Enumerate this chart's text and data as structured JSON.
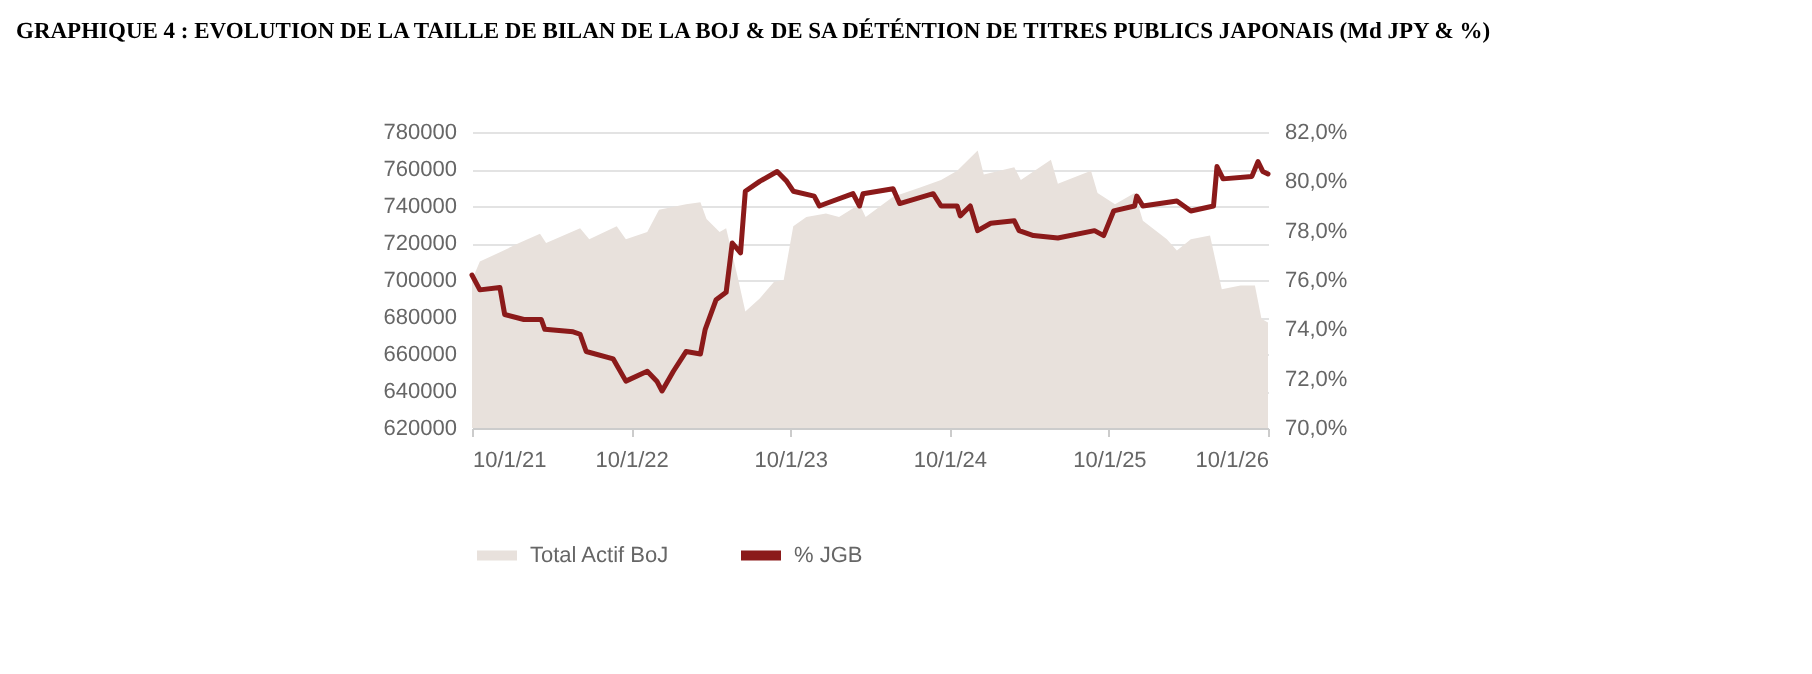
{
  "chart_data": {
    "type": "line",
    "title": "GRAPHIQUE 4 : EVOLUTION DE LA TAILLE DE BILAN DE LA BOJ & DE SA DÉTÉNTION DE TITRES PUBLICS JAPONAIS (Md JPY & %)",
    "xlim": [
      "2021-01-10",
      "2026-01-10"
    ],
    "xticks": [
      {
        "value": "2021-01-10",
        "label": "10/1/21"
      },
      {
        "value": "2022-01-10",
        "label": "10/1/22"
      },
      {
        "value": "2023-01-10",
        "label": "10/1/23"
      },
      {
        "value": "2024-01-10",
        "label": "10/1/24"
      },
      {
        "value": "2025-01-10",
        "label": "10/1/25"
      },
      {
        "value": "2026-01-10",
        "label": "10/1/26"
      }
    ],
    "ylim": [
      620000,
      780000
    ],
    "yticks": [
      620000,
      640000,
      660000,
      680000,
      700000,
      720000,
      740000,
      760000,
      780000
    ],
    "y2lim": [
      70,
      82
    ],
    "y2ticks": [
      {
        "value": 70,
        "label": "70,0%"
      },
      {
        "value": 72,
        "label": "72,0%"
      },
      {
        "value": 74,
        "label": "74,0%"
      },
      {
        "value": 76,
        "label": "76,0%"
      },
      {
        "value": 78,
        "label": "78,0%"
      },
      {
        "value": 80,
        "label": "80,0%"
      },
      {
        "value": 82,
        "label": "82,0%"
      }
    ],
    "grid": "y",
    "legend": "bottom",
    "series": [
      {
        "name": "Total Actif BoJ",
        "type": "area",
        "color": "#e8e1dc",
        "x": [
          "2021-01-10",
          "2021-01-28",
          "2021-03-15",
          "2021-04-28",
          "2021-06-15",
          "2021-06-29",
          "2021-09-15",
          "2021-10-06",
          "2021-12-08",
          "2021-12-29",
          "2022-02-16",
          "2022-03-15",
          "2022-05-16",
          "2022-06-18",
          "2022-07-02",
          "2022-08-01",
          "2022-08-16",
          "2022-09-11",
          "2022-09-29",
          "2022-11-01",
          "2022-12-04",
          "2022-12-26",
          "2023-01-17",
          "2023-02-16",
          "2023-04-02",
          "2023-05-02",
          "2023-06-18",
          "2023-07-02",
          "2023-09-03",
          "2023-11-04",
          "2023-12-22",
          "2024-01-28",
          "2024-03-15",
          "2024-03-29",
          "2024-06-07",
          "2024-06-22",
          "2024-08-30",
          "2024-09-15",
          "2024-11-30",
          "2024-12-15",
          "2025-01-24",
          "2025-03-10",
          "2025-03-29",
          "2025-05-23",
          "2025-06-15",
          "2025-07-17",
          "2025-08-30",
          "2025-09-26",
          "2025-11-08",
          "2025-12-11",
          "2025-12-26",
          "2026-01-10"
        ],
        "values": [
          700000,
          710000,
          715000,
          720000,
          725000,
          720000,
          728000,
          722000,
          729000,
          722000,
          726000,
          738000,
          741000,
          742000,
          733000,
          726000,
          728000,
          702000,
          683000,
          690000,
          699000,
          700000,
          729000,
          734000,
          736000,
          734000,
          741000,
          734000,
          745000,
          750000,
          754000,
          759000,
          770000,
          757000,
          761000,
          754000,
          765000,
          752000,
          759000,
          747000,
          741000,
          747000,
          732000,
          722000,
          716000,
          722000,
          724000,
          695000,
          697000,
          697000,
          679000,
          677000
        ]
      },
      {
        "name": "% JGB",
        "type": "line",
        "axis": "y2",
        "color": "#8b1a1a",
        "x": [
          "2021-01-10",
          "2021-01-28",
          "2021-03-15",
          "2021-03-26",
          "2021-05-09",
          "2021-06-18",
          "2021-06-26",
          "2021-08-30",
          "2021-09-15",
          "2021-09-29",
          "2021-11-30",
          "2021-12-29",
          "2022-02-16",
          "2022-03-10",
          "2022-03-22",
          "2022-04-17",
          "2022-05-16",
          "2022-06-18",
          "2022-06-29",
          "2022-07-24",
          "2022-08-16",
          "2022-08-30",
          "2022-09-18",
          "2022-09-29",
          "2022-11-01",
          "2022-12-11",
          "2023-01-02",
          "2023-01-17",
          "2023-03-06",
          "2023-03-18",
          "2023-04-02",
          "2023-06-03",
          "2023-06-18",
          "2023-06-26",
          "2023-09-03",
          "2023-09-18",
          "2023-12-04",
          "2023-12-22",
          "2024-01-28",
          "2024-02-04",
          "2024-02-27",
          "2024-03-15",
          "2024-04-14",
          "2024-06-07",
          "2024-06-18",
          "2024-07-21",
          "2024-09-15",
          "2024-12-08",
          "2024-12-29",
          "2025-01-21",
          "2025-03-10",
          "2025-03-15",
          "2025-03-29",
          "2025-06-15",
          "2025-07-17",
          "2025-09-07",
          "2025-09-15",
          "2025-09-29",
          "2025-12-04",
          "2025-12-18",
          "2025-12-29",
          "2026-01-10"
        ],
        "values": [
          76.2,
          75.6,
          75.7,
          74.6,
          74.4,
          74.4,
          74,
          73.9,
          73.8,
          73.1,
          72.8,
          71.9,
          72.3,
          71.9,
          71.5,
          72.3,
          73.1,
          73,
          74,
          75.2,
          75.5,
          77.5,
          77.1,
          79.6,
          80,
          80.4,
          80,
          79.6,
          79.4,
          79,
          79.1,
          79.5,
          79,
          79.5,
          79.7,
          79.1,
          79.5,
          79,
          79,
          78.6,
          79,
          78,
          78.3,
          78.4,
          78,
          77.8,
          77.7,
          78,
          77.8,
          78.8,
          79,
          79.4,
          79,
          79.2,
          78.8,
          79,
          80.6,
          80.1,
          80.2,
          80.8,
          80.4,
          80.3
        ]
      }
    ]
  }
}
